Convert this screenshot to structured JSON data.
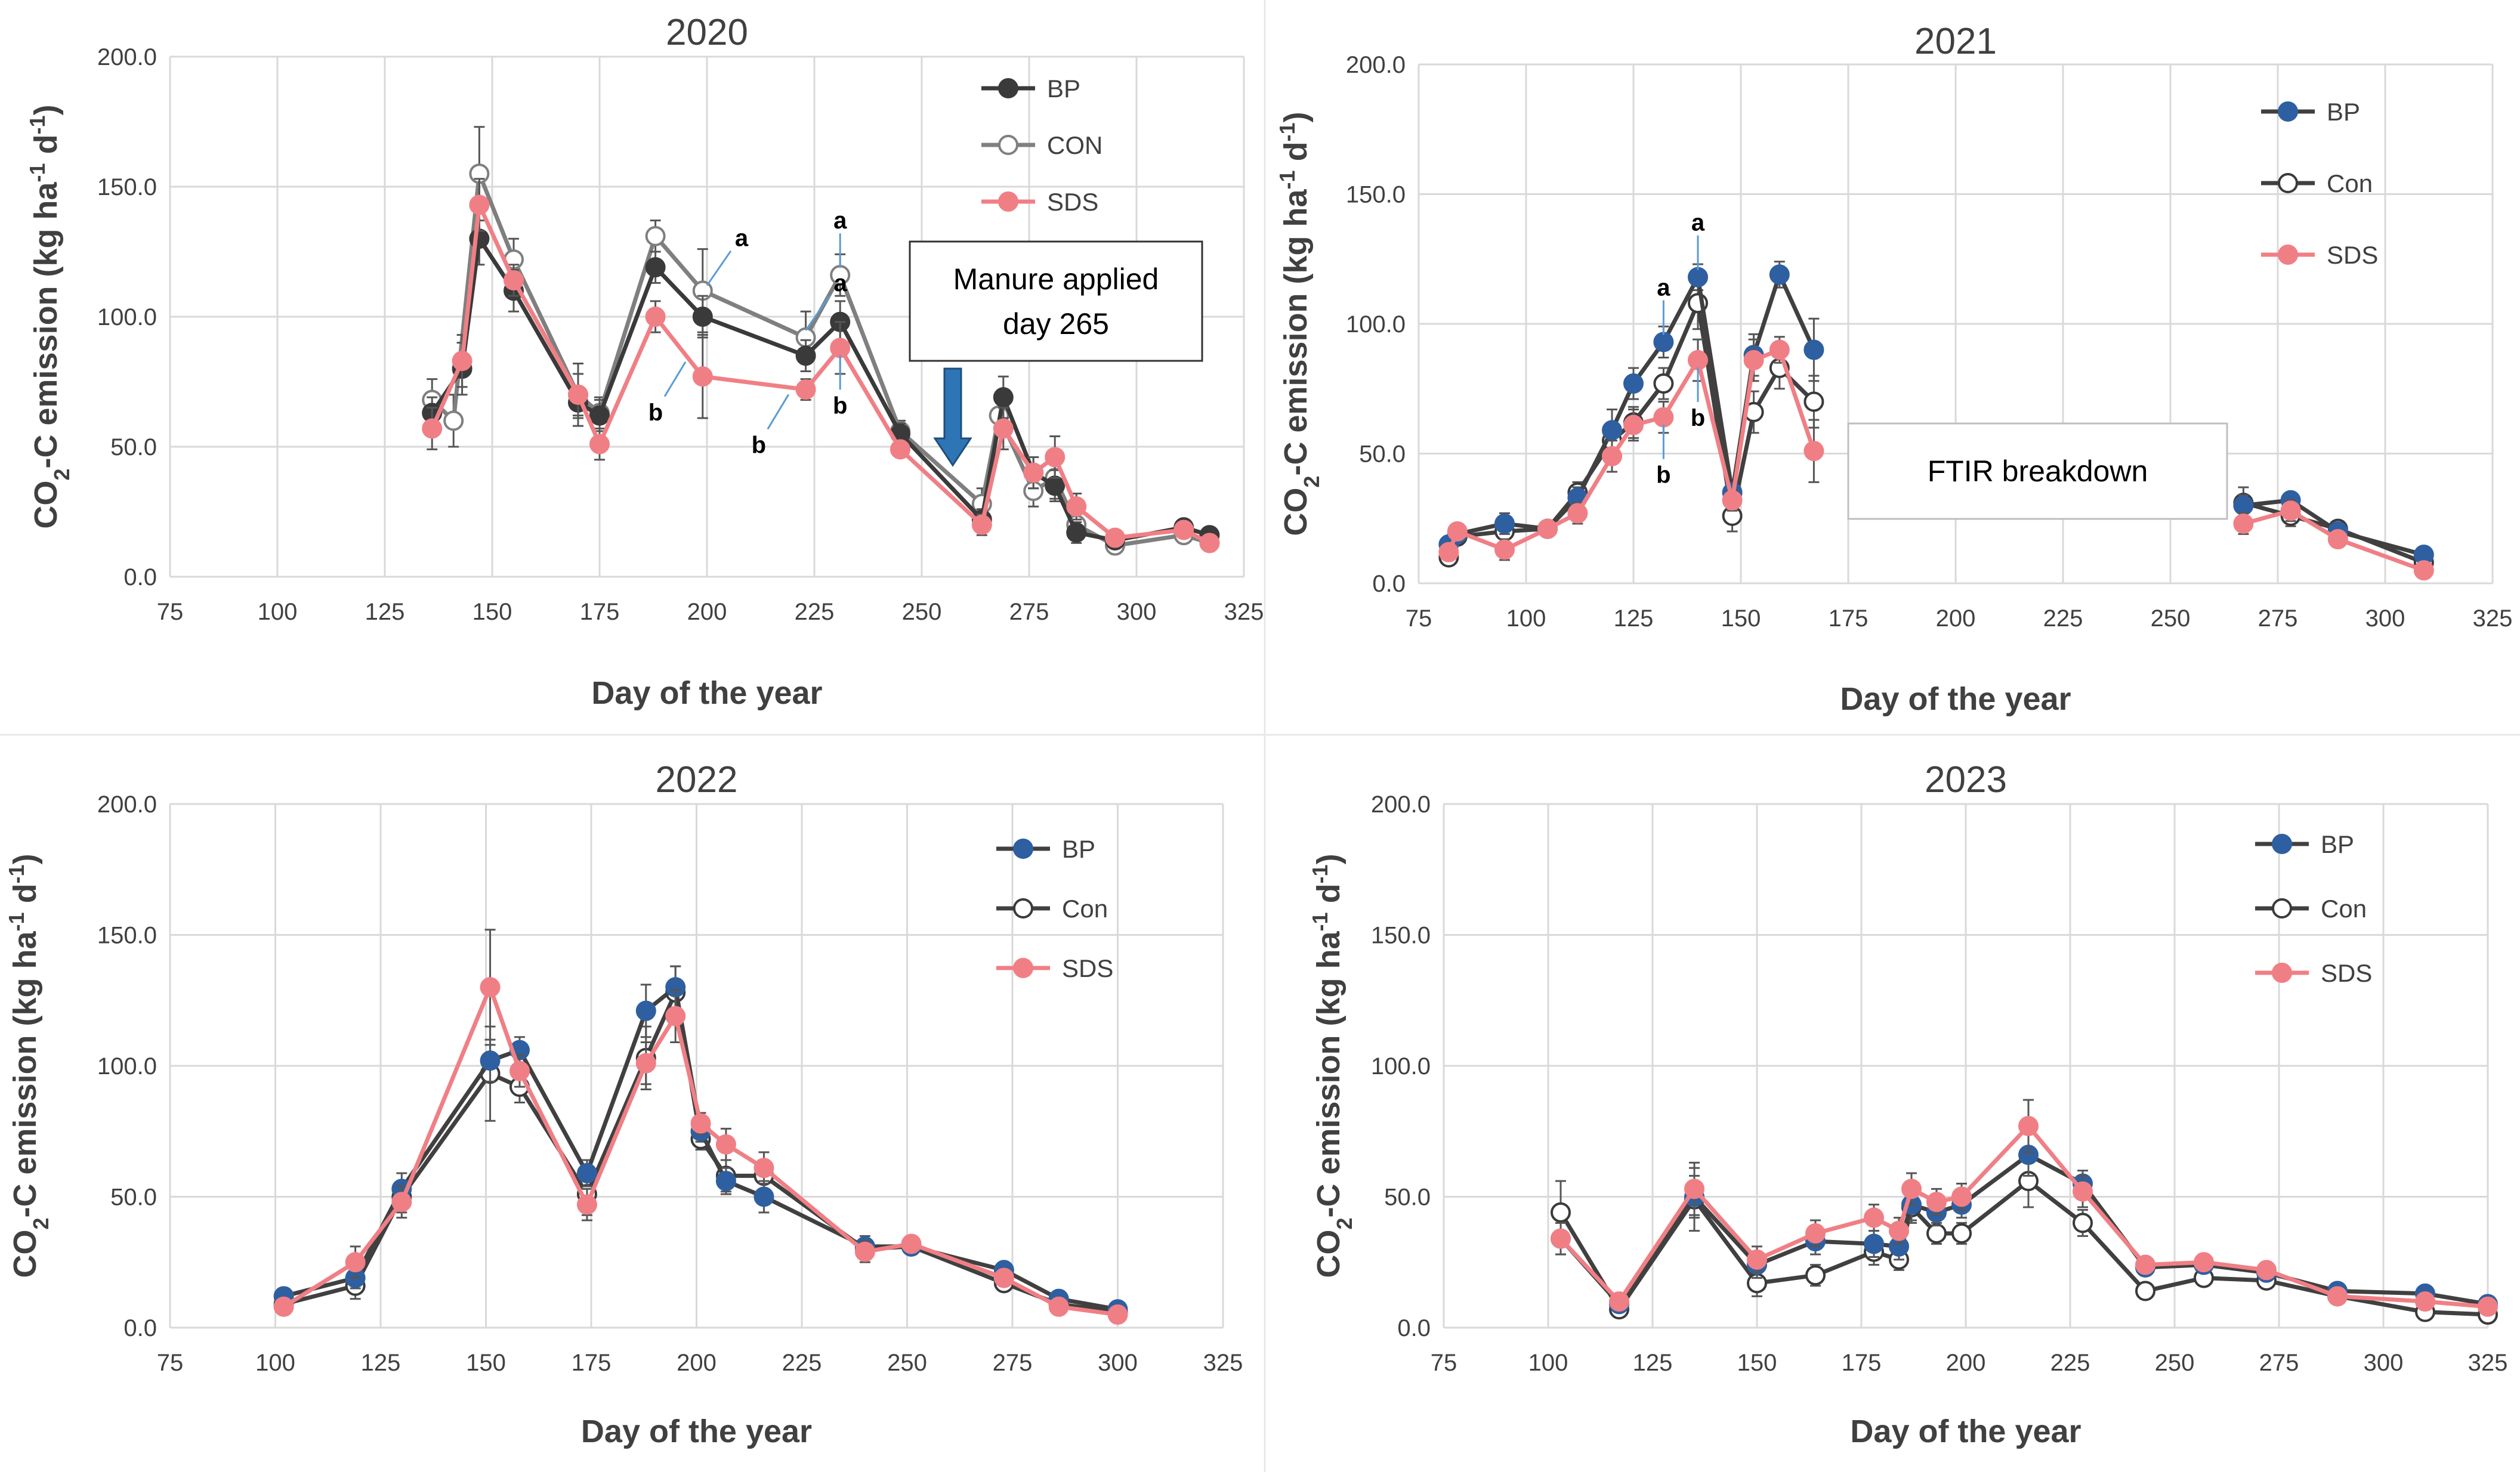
{
  "colors": {
    "BP_dark": "#3a3a3a",
    "CON_gray": "#7f7f7f",
    "SDS": "#f07f85",
    "BP_blue_marker": "#2e5fa0",
    "BP_line_dark": "#404040",
    "grid": "#d9d9d9",
    "annotation_line": "#5b9bd5",
    "arrow_fill": "#2e75b6"
  },
  "chart_data": [
    {
      "type": "line",
      "title": "2020",
      "xlabel": "Day of the year",
      "ylabel_parts": {
        "a": "CO",
        "sub2": "2",
        "b": "-C  emission (kg ha",
        "sup1": "-1",
        "c": " d",
        "sup2": "-1",
        "d": ")"
      },
      "xlim": [
        75,
        325
      ],
      "ylim": [
        0,
        200
      ],
      "xticks": [
        "75",
        "100",
        "125",
        "150",
        "175",
        "200",
        "225",
        "250",
        "275",
        "300",
        "325"
      ],
      "yticks": [
        "0.0",
        "50.0",
        "100.0",
        "150.0",
        "200.0"
      ],
      "legend": [
        "BP",
        "CON",
        "SDS"
      ],
      "series": [
        {
          "name": "BP",
          "x": [
            136,
            143,
            147,
            155,
            170,
            175,
            188,
            199,
            223,
            231,
            245,
            264,
            269,
            276,
            281,
            286,
            295,
            311,
            317
          ],
          "y": [
            63,
            80,
            130,
            110,
            67,
            62,
            119,
            100,
            85,
            98,
            55,
            22,
            69,
            40,
            35,
            17,
            14,
            19,
            16
          ],
          "err": [
            6,
            10,
            10,
            8,
            6,
            6,
            6,
            8,
            6,
            8,
            4,
            4,
            8,
            6,
            6,
            4,
            3,
            3,
            3
          ]
        },
        {
          "name": "CON",
          "x": [
            136,
            141,
            147,
            155,
            170,
            175,
            188,
            199,
            223,
            231,
            245,
            264,
            268,
            276,
            281,
            286,
            295,
            311,
            317
          ],
          "y": [
            68,
            60,
            155,
            122,
            70,
            63,
            131,
            110,
            92,
            116,
            56,
            28,
            62,
            33,
            38,
            20,
            12,
            16,
            13
          ],
          "err": [
            8,
            10,
            18,
            8,
            12,
            6,
            6,
            16,
            10,
            8,
            4,
            6,
            8,
            6,
            8,
            5,
            3,
            3,
            3
          ]
        },
        {
          "name": "SDS",
          "x": [
            136,
            143,
            147,
            155,
            170,
            175,
            188,
            199,
            223,
            231,
            245,
            264,
            269,
            276,
            281,
            286,
            295,
            311,
            317
          ],
          "y": [
            57,
            83,
            143,
            114,
            70,
            51,
            100,
            77,
            72,
            88,
            49,
            20,
            57,
            40,
            46,
            27,
            15,
            18,
            13
          ],
          "err": [
            8,
            10,
            10,
            6,
            8,
            6,
            6,
            16,
            4,
            10,
            3,
            4,
            8,
            6,
            8,
            5,
            3,
            3,
            3
          ]
        }
      ],
      "annotations": [
        {
          "text": "a",
          "day": 200,
          "series": "CON"
        },
        {
          "text": "b",
          "day": 195,
          "series": "SDS"
        },
        {
          "text": "a",
          "day": 223,
          "series": "CON"
        },
        {
          "text": "b",
          "day": 219,
          "series": "SDS"
        },
        {
          "text": "a",
          "day": 231,
          "series": "CON"
        },
        {
          "text": "b",
          "day": 231,
          "series": "SDS"
        }
      ],
      "textbox": {
        "line1": "Manure applied",
        "line2": "day 265"
      }
    },
    {
      "type": "line",
      "title": "2021",
      "xlabel": "Day of the year",
      "ylabel_parts": {
        "a": "CO",
        "sub2": "2",
        "b": "-C  emission (kg ha",
        "sup1": "-1",
        "c": " d",
        "sup2": "-1",
        "d": ")"
      },
      "xlim": [
        75,
        325
      ],
      "ylim": [
        0,
        200
      ],
      "xticks": [
        "75",
        "100",
        "125",
        "150",
        "175",
        "200",
        "225",
        "250",
        "275",
        "300",
        "325"
      ],
      "yticks": [
        "0.0",
        "50.0",
        "100.0",
        "150.0",
        "200.0"
      ],
      "legend": [
        "BP",
        "Con",
        "SDS"
      ],
      "series": [
        {
          "name": "BP",
          "segments": [
            {
              "x": [
                82,
                84,
                95,
                105,
                112,
                120,
                125,
                132,
                140,
                148,
                153,
                159,
                167
              ],
              "y": [
                15,
                19,
                23,
                21,
                33,
                59,
                77,
                93,
                118,
                35,
                88,
                119,
                90
              ],
              "err": [
                3,
                3,
                4,
                3,
                4,
                8,
                6,
                6,
                5,
                4,
                8,
                5,
                12
              ]
            },
            {
              "x": [
                267,
                278,
                289,
                309
              ],
              "y": [
                30,
                32,
                20,
                11
              ],
              "err": [
                4,
                3,
                3,
                2
              ]
            }
          ]
        },
        {
          "name": "Con",
          "segments": [
            {
              "x": [
                82,
                84,
                95,
                105,
                112,
                120,
                125,
                132,
                140,
                148,
                153,
                159,
                167
              ],
              "y": [
                10,
                18,
                20,
                21,
                35,
                55,
                62,
                77,
                108,
                26,
                66,
                83,
                70
              ],
              "err": [
                3,
                3,
                4,
                3,
                4,
                6,
                6,
                6,
                10,
                6,
                8,
                8,
                10
              ]
            },
            {
              "x": [
                267,
                278,
                289,
                309
              ],
              "y": [
                31,
                26,
                21,
                8
              ],
              "err": [
                6,
                4,
                3,
                2
              ]
            }
          ]
        },
        {
          "name": "SDS",
          "segments": [
            {
              "x": [
                82,
                84,
                95,
                105,
                112,
                120,
                125,
                132,
                140,
                148,
                153,
                159,
                167
              ],
              "y": [
                12,
                20,
                13,
                21,
                27,
                49,
                61,
                64,
                86,
                32,
                86,
                90,
                51
              ],
              "err": [
                3,
                3,
                4,
                3,
                4,
                6,
                6,
                6,
                8,
                4,
                8,
                5,
                12
              ]
            },
            {
              "x": [
                267,
                278,
                289,
                309
              ],
              "y": [
                23,
                28,
                17,
                5
              ],
              "err": [
                4,
                4,
                3,
                2
              ]
            }
          ]
        }
      ],
      "annotations": [
        {
          "text": "a",
          "day": 140,
          "series": "BP"
        },
        {
          "text": "a",
          "day": 132,
          "series": "BP"
        },
        {
          "text": "b",
          "day": 140,
          "series": "SDS"
        },
        {
          "text": "b",
          "day": 132,
          "series": "SDS"
        }
      ],
      "textbox": {
        "line1": "FTIR breakdown"
      }
    },
    {
      "type": "line",
      "title": "2022",
      "xlabel": "Day of the year",
      "ylabel_parts": {
        "a": "CO",
        "sub2": "2",
        "b": "-C  emission (kg ha",
        "sup1": "-1",
        "c": " d",
        "sup2": "-1",
        "d": ")"
      },
      "xlim": [
        75,
        325
      ],
      "ylim": [
        0,
        200
      ],
      "xticks": [
        "75",
        "100",
        "125",
        "150",
        "175",
        "200",
        "225",
        "250",
        "275",
        "300",
        "325"
      ],
      "yticks": [
        "0.0",
        "50.0",
        "100.0",
        "150.0",
        "200.0"
      ],
      "legend": [
        "BP",
        "Con",
        "SDS"
      ],
      "series": [
        {
          "name": "BP",
          "x": [
            102,
            119,
            130,
            151,
            158,
            174,
            188,
            195,
            201,
            207,
            216,
            240,
            251,
            273,
            286,
            300
          ],
          "y": [
            12,
            19,
            53,
            102,
            106,
            59,
            121,
            130,
            75,
            56,
            50,
            31,
            31,
            22,
            11,
            7
          ],
          "err": [
            3,
            4,
            6,
            8,
            5,
            5,
            10,
            8,
            4,
            5,
            6,
            4,
            3,
            3,
            2,
            2
          ]
        },
        {
          "name": "Con",
          "x": [
            102,
            119,
            130,
            151,
            158,
            174,
            188,
            195,
            201,
            207,
            216,
            240,
            251,
            273,
            286,
            300
          ],
          "y": [
            9,
            16,
            50,
            97,
            92,
            51,
            103,
            128,
            72,
            58,
            58,
            30,
            31,
            17,
            9,
            6
          ],
          "err": [
            3,
            5,
            6,
            18,
            6,
            8,
            12,
            10,
            4,
            6,
            6,
            4,
            3,
            3,
            2,
            2
          ]
        },
        {
          "name": "SDS",
          "x": [
            102,
            119,
            130,
            151,
            158,
            174,
            188,
            195,
            201,
            207,
            216,
            240,
            251,
            273,
            286,
            300
          ],
          "y": [
            8,
            25,
            48,
            130,
            98,
            47,
            101,
            119,
            78,
            70,
            61,
            29,
            32,
            19,
            8,
            5
          ],
          "err": [
            3,
            6,
            6,
            22,
            6,
            6,
            8,
            10,
            4,
            6,
            6,
            4,
            3,
            3,
            2,
            2
          ]
        }
      ]
    },
    {
      "type": "line",
      "title": "2023",
      "xlabel": "Day of the year",
      "ylabel_parts": {
        "a": "CO",
        "sub2": "2",
        "b": "-C  emission (kg ha",
        "sup1": "-1",
        "c": " d",
        "sup2": "-1",
        "d": ")"
      },
      "xlim": [
        75,
        325
      ],
      "ylim": [
        0,
        200
      ],
      "xticks": [
        "75",
        "100",
        "125",
        "150",
        "175",
        "200",
        "225",
        "250",
        "275",
        "300",
        "325"
      ],
      "yticks": [
        "0.0",
        "50.0",
        "100.0",
        "150.0",
        "200.0"
      ],
      "legend": [
        "BP",
        "Con",
        "SDS"
      ],
      "series": [
        {
          "name": "BP",
          "x": [
            103,
            117,
            135,
            150,
            164,
            178,
            184,
            187,
            193,
            199,
            215,
            228,
            243,
            257,
            272,
            289,
            310,
            325
          ],
          "y": [
            34,
            9,
            50,
            24,
            33,
            32,
            31,
            47,
            44,
            47,
            66,
            55,
            23,
            24,
            21,
            14,
            13,
            9
          ],
          "err": [
            6,
            3,
            8,
            5,
            5,
            5,
            5,
            6,
            5,
            5,
            8,
            5,
            3,
            3,
            3,
            3,
            2,
            2
          ]
        },
        {
          "name": "Con",
          "x": [
            103,
            117,
            135,
            150,
            164,
            178,
            184,
            187,
            193,
            199,
            215,
            228,
            243,
            257,
            272,
            289,
            310,
            325
          ],
          "y": [
            44,
            7,
            49,
            17,
            20,
            29,
            26,
            46,
            36,
            36,
            56,
            40,
            14,
            19,
            18,
            12,
            6,
            5
          ],
          "err": [
            12,
            3,
            12,
            5,
            4,
            5,
            4,
            6,
            4,
            4,
            10,
            5,
            3,
            3,
            3,
            2,
            2,
            2
          ]
        },
        {
          "name": "SDS",
          "x": [
            103,
            117,
            135,
            150,
            164,
            178,
            184,
            187,
            193,
            199,
            215,
            228,
            243,
            257,
            272,
            289,
            310,
            325
          ],
          "y": [
            34,
            10,
            53,
            26,
            36,
            42,
            37,
            53,
            48,
            50,
            77,
            52,
            24,
            25,
            22,
            12,
            10,
            8
          ],
          "err": [
            6,
            3,
            10,
            5,
            5,
            5,
            5,
            6,
            5,
            5,
            10,
            6,
            3,
            3,
            3,
            3,
            2,
            2
          ]
        }
      ]
    }
  ]
}
